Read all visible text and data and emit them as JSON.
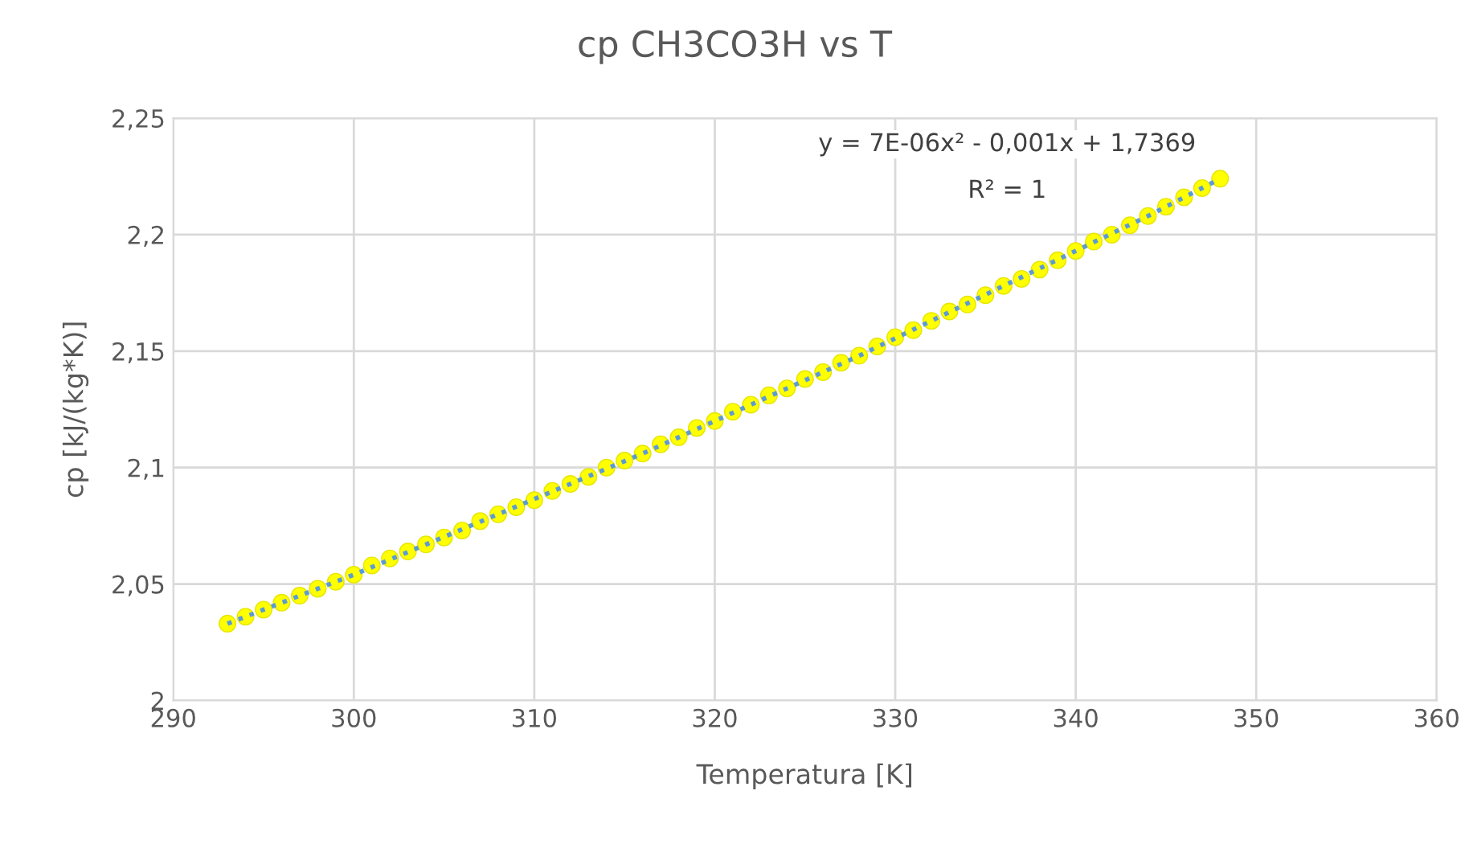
{
  "chart_data": {
    "type": "scatter",
    "title": "cp CH3CO3H vs T",
    "xlabel": "Temperatura [K]",
    "ylabel": "cp [kJ/(kg*K)]",
    "x": [
      293,
      294,
      295,
      296,
      297,
      298,
      299,
      300,
      301,
      302,
      303,
      304,
      305,
      306,
      307,
      308,
      309,
      310,
      311,
      312,
      313,
      314,
      315,
      316,
      317,
      318,
      319,
      320,
      321,
      322,
      323,
      324,
      325,
      326,
      327,
      328,
      329,
      330,
      331,
      332,
      333,
      334,
      335,
      336,
      337,
      338,
      339,
      340,
      341,
      342,
      343,
      344,
      345,
      346,
      347,
      348
    ],
    "series": [
      {
        "color": "#ffff00",
        "marker": "circle",
        "values": [
          2.033,
          2.036,
          2.039,
          2.042,
          2.045,
          2.048,
          2.051,
          2.054,
          2.058,
          2.061,
          2.064,
          2.067,
          2.07,
          2.073,
          2.077,
          2.08,
          2.083,
          2.086,
          2.09,
          2.093,
          2.096,
          2.1,
          2.103,
          2.106,
          2.11,
          2.113,
          2.117,
          2.12,
          2.124,
          2.127,
          2.131,
          2.134,
          2.138,
          2.141,
          2.145,
          2.148,
          2.152,
          2.156,
          2.159,
          2.163,
          2.167,
          2.17,
          2.174,
          2.178,
          2.181,
          2.185,
          2.189,
          2.193,
          2.197,
          2.2,
          2.204,
          2.208,
          2.212,
          2.216,
          2.22,
          2.224
        ]
      },
      {
        "type": "line",
        "color": "#5b9bd5",
        "line_style": "dotted",
        "marker": "none",
        "x": [
          293,
          296,
          300,
          304,
          308,
          312,
          316,
          320,
          324,
          328,
          332,
          336,
          340,
          344,
          348
        ],
        "values": [
          2.033,
          2.042,
          2.054,
          2.067,
          2.08,
          2.093,
          2.106,
          2.12,
          2.134,
          2.148,
          2.163,
          2.178,
          2.193,
          2.208,
          2.224
        ]
      }
    ],
    "xlim": [
      290,
      360
    ],
    "xticks": [
      290,
      300,
      310,
      320,
      330,
      340,
      350,
      360
    ],
    "ylim": [
      2,
      2.25
    ],
    "yticks": [
      2,
      {
        "value": 2.05,
        "label": "2,05"
      },
      {
        "value": 2.1,
        "label": "2,1"
      },
      {
        "value": 2.15,
        "label": "2,15"
      },
      {
        "value": 2.2,
        "label": "2,2"
      },
      {
        "value": 2.25,
        "label": "2,25"
      }
    ],
    "grid": true,
    "annotations": [
      "y = 7E-06x² - 0,001x + 1,7369",
      "R² = 1"
    ]
  }
}
